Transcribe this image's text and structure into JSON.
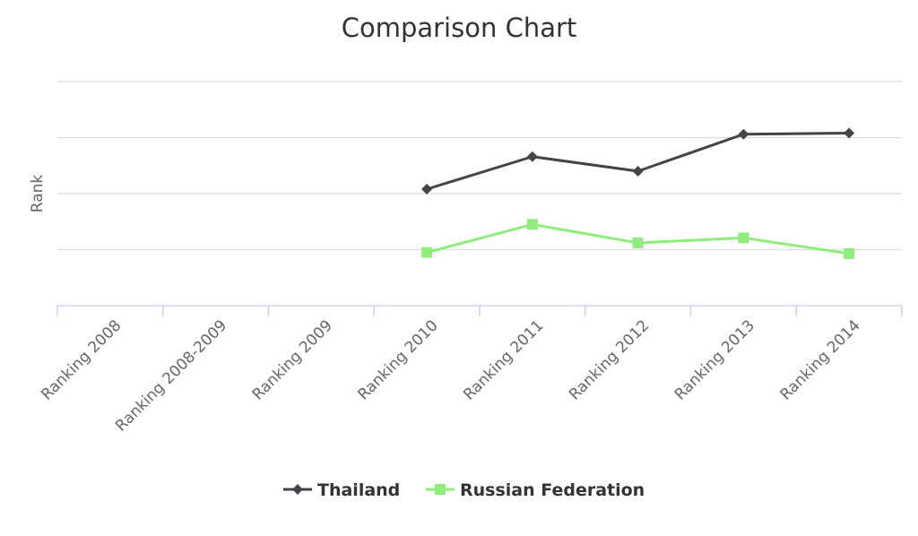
{
  "chart_data": {
    "type": "line",
    "title": "Comparison Chart",
    "xlabel": "",
    "ylabel": "Rank",
    "categories": [
      "Ranking 2008",
      "Ranking 2008-2009",
      "Ranking 2009",
      "Ranking 2010",
      "Ranking 2011",
      "Ranking 2012",
      "Ranking 2013",
      "Ranking 2014"
    ],
    "ylim": [
      0,
      4
    ],
    "y_axis_labels_visible": false,
    "grid": true,
    "legend_position": "bottom-center",
    "series": [
      {
        "name": "Thailand",
        "color": "#434348",
        "marker": "diamond",
        "values": [
          null,
          null,
          null,
          2.08,
          2.66,
          2.4,
          3.06,
          3.08
        ]
      },
      {
        "name": "Russian Federation",
        "color": "#90ed7d",
        "marker": "square",
        "values": [
          null,
          null,
          null,
          0.95,
          1.45,
          1.12,
          1.21,
          0.93
        ]
      }
    ]
  }
}
